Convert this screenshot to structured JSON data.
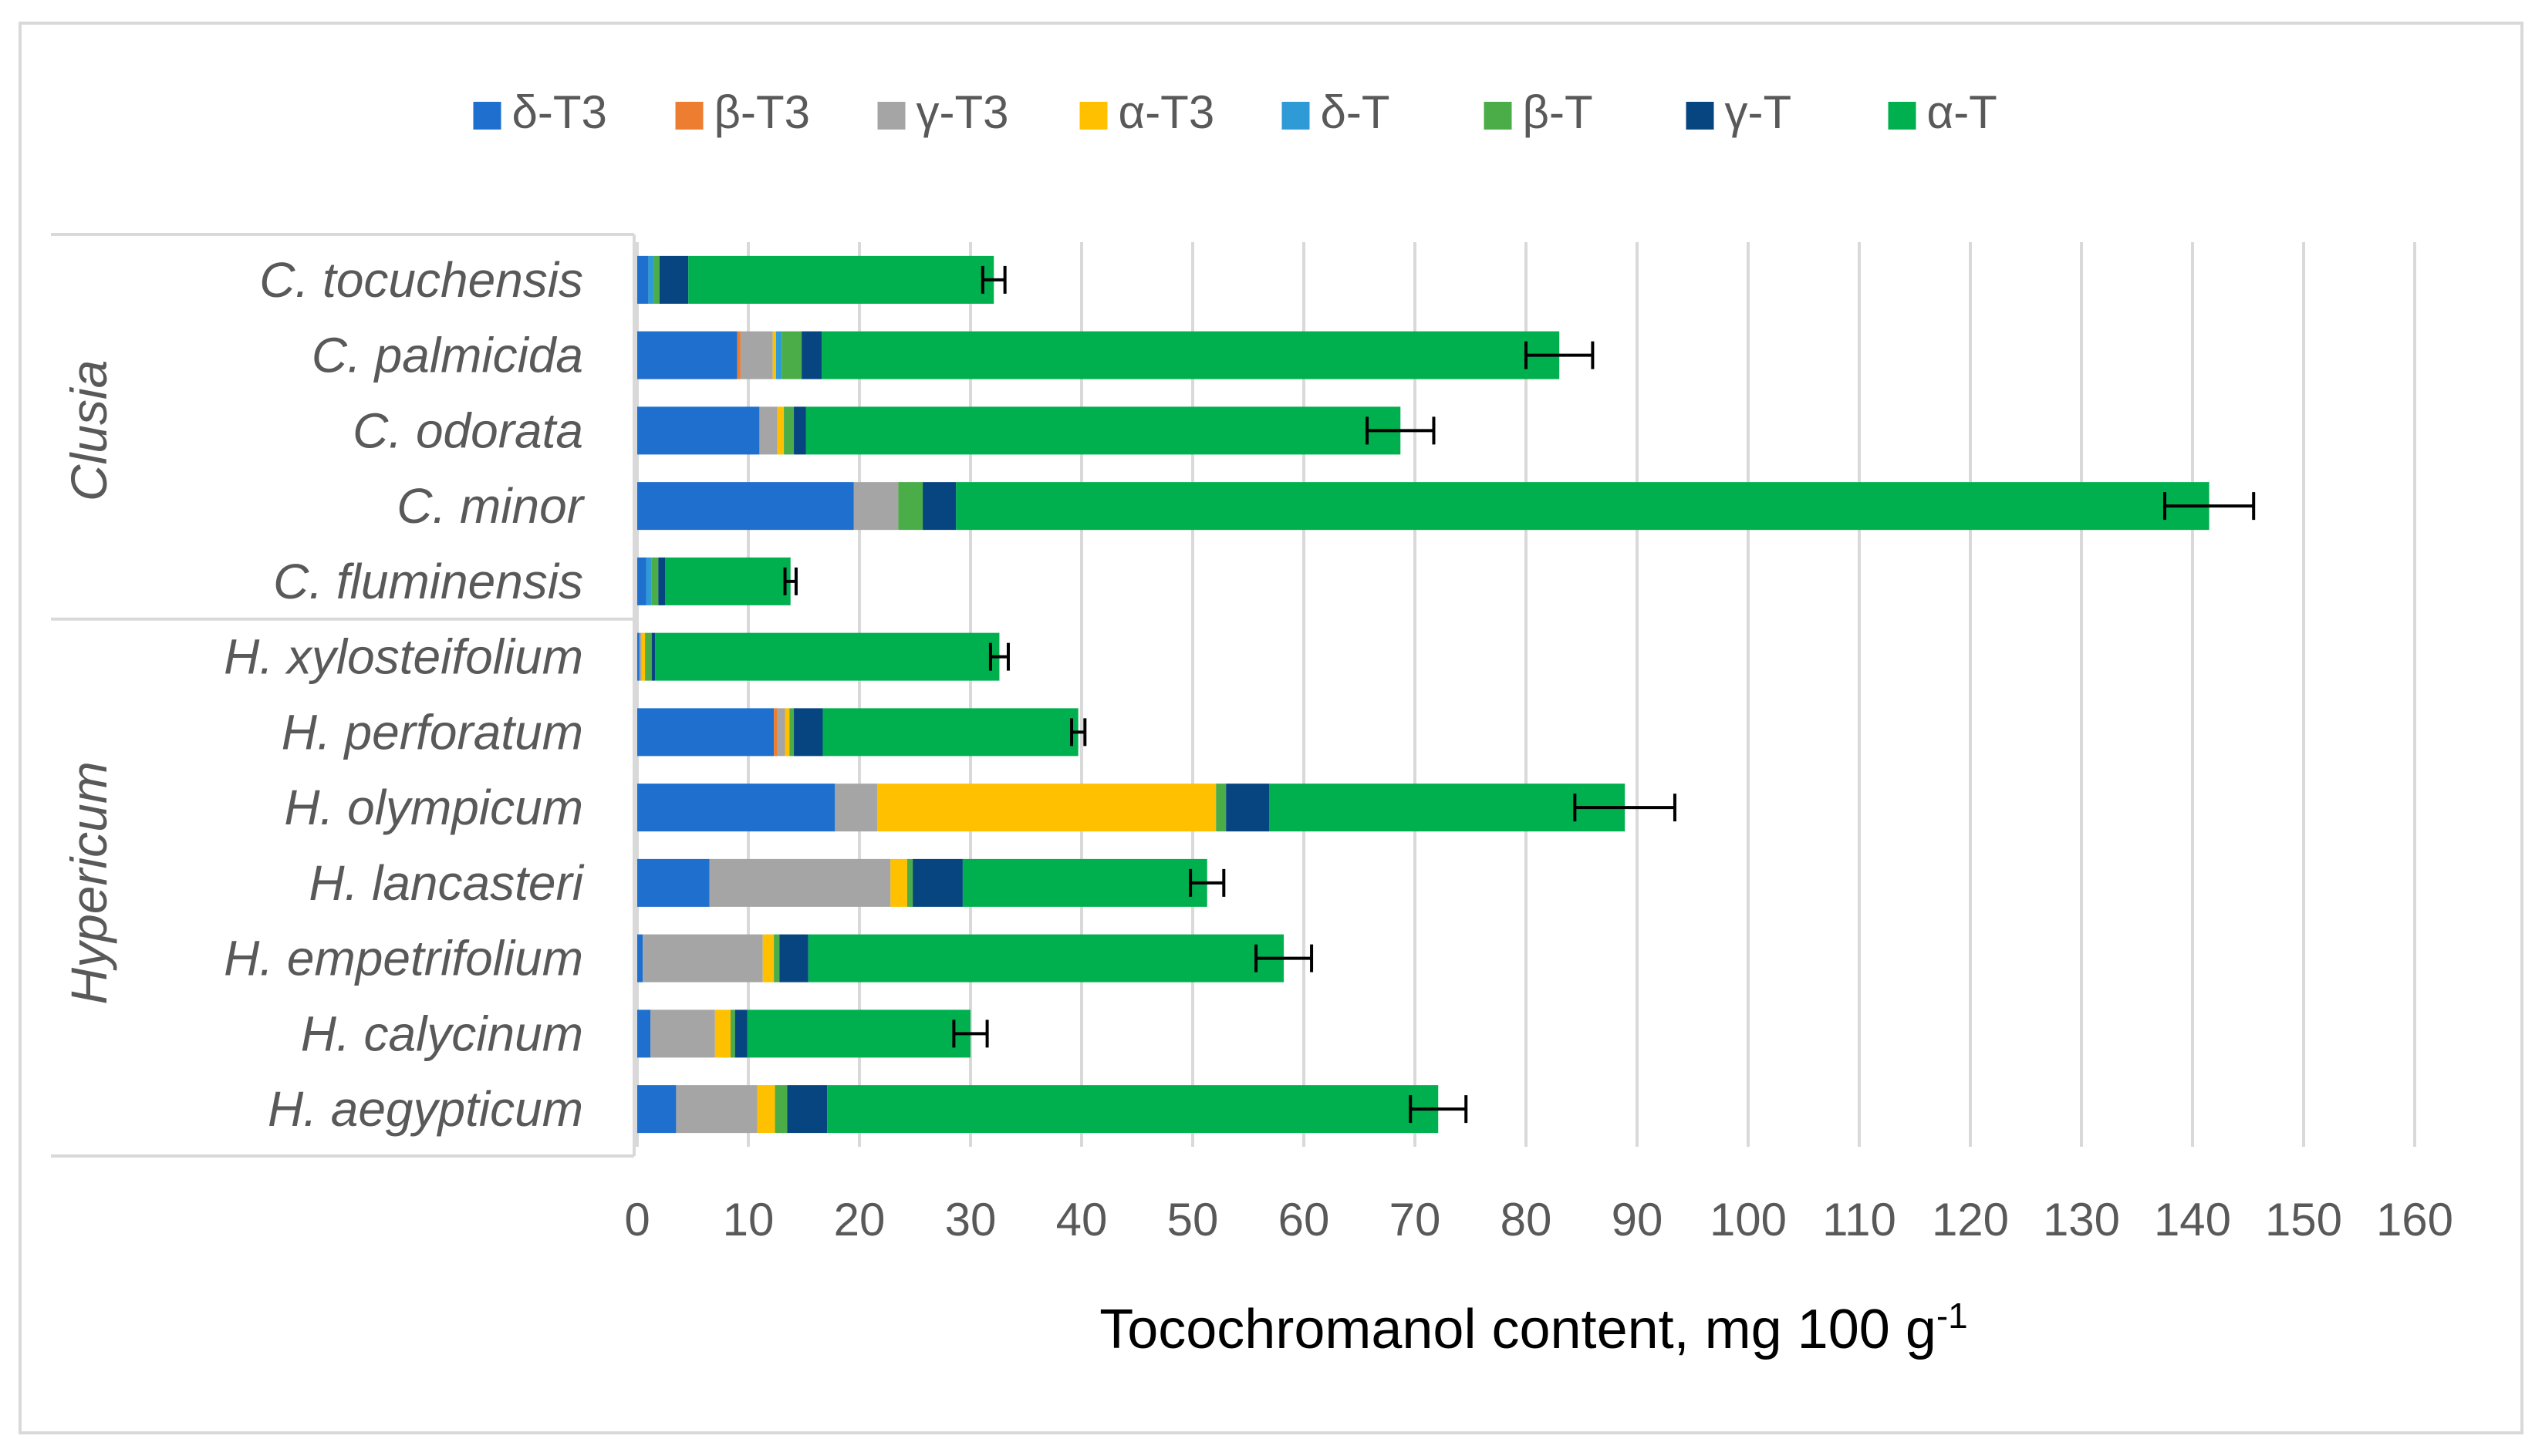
{
  "chart_data": {
    "type": "bar",
    "orientation": "horizontal",
    "stacked": true,
    "xlabel": "Tocochromanol content, mg 100 g",
    "xlabel_superscript": "-1",
    "xlim": [
      0,
      160
    ],
    "xticks": [
      0,
      10,
      20,
      30,
      40,
      50,
      60,
      70,
      80,
      90,
      100,
      110,
      120,
      130,
      140,
      150,
      160
    ],
    "grid": true,
    "legend_position": "top",
    "groups": [
      {
        "name": "Clusia",
        "categories": [
          "C. tocuchensis",
          "C. palmicida",
          "C. odorata",
          "C. minor",
          "C. fluminensis"
        ]
      },
      {
        "name": "Hypericum",
        "categories": [
          "H. xylosteifolium",
          "H. perforatum",
          "H. olympicum",
          "H. lancasteri",
          "H. empetrifolium",
          "H. calycinum",
          "H. aegypticum"
        ]
      }
    ],
    "categories": [
      "C. tocuchensis",
      "C. palmicida",
      "C. odorata",
      "C. minor",
      "C. fluminensis",
      "H. xylosteifolium",
      "H. perforatum",
      "H. olympicum",
      "H. lancasteri",
      "H. empetrifolium",
      "H. calycinum",
      "H. aegypticum"
    ],
    "series": [
      {
        "name": "δ-T3",
        "color": "#1f6fcf",
        "values": [
          1.0,
          9.0,
          11.0,
          19.5,
          0.8,
          0.2,
          12.3,
          17.8,
          6.5,
          0.5,
          1.2,
          3.5
        ]
      },
      {
        "name": "β-T3",
        "color": "#ed7d31",
        "values": [
          0,
          0.3,
          0,
          0,
          0,
          0,
          0.3,
          0,
          0,
          0,
          0,
          0
        ]
      },
      {
        "name": "γ-T3",
        "color": "#a5a5a5",
        "values": [
          0,
          2.9,
          1.6,
          4.0,
          0,
          0.2,
          0.7,
          3.8,
          16.3,
          10.8,
          5.8,
          7.3
        ]
      },
      {
        "name": "α-T3",
        "color": "#ffc000",
        "values": [
          0,
          0.3,
          0.6,
          0,
          0,
          0.3,
          0.4,
          30.5,
          1.5,
          1.0,
          1.4,
          1.6
        ]
      },
      {
        "name": "δ-T",
        "color": "#2e9bd6",
        "values": [
          0.5,
          0.5,
          0,
          0,
          0.5,
          0,
          0,
          0,
          0,
          0,
          0,
          0
        ]
      },
      {
        "name": "β-T",
        "color": "#4aad47",
        "values": [
          0.5,
          1.8,
          0.9,
          2.2,
          0.6,
          0.6,
          0.4,
          0.9,
          0.5,
          0.5,
          0.4,
          1.1
        ]
      },
      {
        "name": "γ-T",
        "color": "#074580",
        "values": [
          2.6,
          1.8,
          1.1,
          3.0,
          0.6,
          0.3,
          2.6,
          3.9,
          4.5,
          2.6,
          1.1,
          3.6
        ]
      },
      {
        "name": "α-T",
        "color": "#00b04f",
        "values": [
          27.5,
          66.4,
          53.5,
          112.8,
          11.3,
          31.0,
          23.0,
          32.0,
          22.0,
          42.8,
          20.1,
          55.0
        ]
      }
    ],
    "error": [
      1.0,
      3.0,
      3.0,
      4.0,
      0.5,
      0.8,
      0.6,
      4.5,
      1.5,
      2.5,
      1.5,
      2.5
    ]
  }
}
